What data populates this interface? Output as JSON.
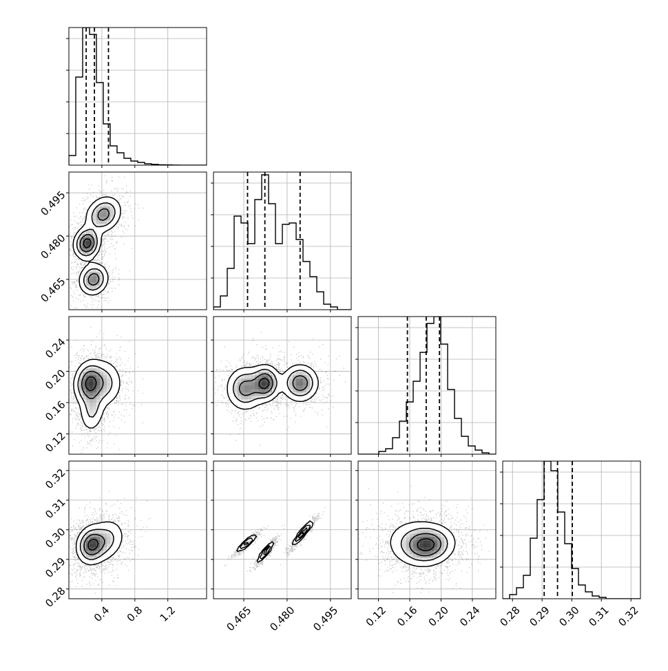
{
  "chart_data": {
    "type": "corner",
    "title": "",
    "grid": true,
    "parameters": [
      {
        "label": "",
        "range": [
          0.0,
          1.67
        ],
        "ticks": [
          0.4,
          0.8,
          1.2
        ],
        "tick_labels": [
          "0.4",
          "0.8",
          "1.2"
        ],
        "quantiles": [
          0.21,
          0.31,
          0.48
        ]
      },
      {
        "label": "",
        "range": [
          0.4545,
          0.5022
        ],
        "ticks": [
          0.465,
          0.48,
          0.495
        ],
        "tick_labels": [
          "0.465",
          "0.480",
          "0.495"
        ],
        "quantiles": [
          0.4663,
          0.4723,
          0.4845
        ]
      },
      {
        "label": "",
        "range": [
          0.094,
          0.27
        ],
        "ticks": [
          0.12,
          0.16,
          0.2,
          0.24
        ],
        "tick_labels": [
          "0.12",
          "0.16",
          "0.20",
          "0.24"
        ],
        "quantiles": [
          0.157,
          0.181,
          0.198
        ]
      },
      {
        "label": "",
        "range": [
          0.2767,
          0.3232
        ],
        "ticks": [
          0.28,
          0.29,
          0.3,
          0.31,
          0.32
        ],
        "tick_labels": [
          "0.28",
          "0.29",
          "0.30",
          "0.31",
          "0.32"
        ],
        "quantiles": [
          0.2907,
          0.2952,
          0.3002
        ]
      }
    ],
    "histograms": [
      {
        "param": 0,
        "bin_start": 0.0,
        "bin_width": 0.0835,
        "counts": [
          0.07,
          0.64,
          1.0,
          0.95,
          0.6,
          0.3,
          0.14,
          0.09,
          0.05,
          0.03,
          0.02,
          0.01,
          0.006,
          0.003,
          0.002,
          0.001,
          0.0,
          0.0,
          0.0,
          0.0
        ]
      },
      {
        "param": 1,
        "bin_start": 0.4545,
        "bin_width": 0.002385,
        "counts": [
          0.02,
          0.1,
          0.3,
          0.68,
          0.63,
          0.48,
          0.8,
          0.98,
          0.77,
          0.48,
          0.62,
          0.63,
          0.51,
          0.35,
          0.24,
          0.13,
          0.04,
          0.02,
          0.0,
          0.0
        ]
      },
      {
        "param": 2,
        "bin_start": 0.094,
        "bin_width": 0.0088,
        "counts": [
          0.0,
          0.0,
          0.0,
          0.02,
          0.04,
          0.12,
          0.24,
          0.38,
          0.53,
          0.74,
          0.95,
          1.0,
          0.8,
          0.47,
          0.26,
          0.13,
          0.06,
          0.03,
          0.01,
          0.0
        ]
      },
      {
        "param": 3,
        "bin_start": 0.2767,
        "bin_width": 0.002325,
        "counts": [
          0.0,
          0.03,
          0.08,
          0.17,
          0.44,
          0.72,
          1.0,
          0.93,
          0.63,
          0.4,
          0.22,
          0.1,
          0.05,
          0.02,
          0.01,
          0.0,
          0.0,
          0.0,
          0.0,
          0.0
        ]
      }
    ],
    "density_panels": [
      {
        "x_param": 0,
        "y_param": 1,
        "blobs": [
          {
            "mx": 0.22,
            "my": 0.4775,
            "sx": 0.08,
            "sy": 0.0028,
            "rho": 0.1,
            "w": 1.0
          },
          {
            "mx": 0.3,
            "my": 0.465,
            "sx": 0.09,
            "sy": 0.0028,
            "rho": 0.1,
            "w": 0.75
          },
          {
            "mx": 0.42,
            "my": 0.4875,
            "sx": 0.11,
            "sy": 0.0032,
            "rho": 0.2,
            "w": 0.7
          }
        ]
      },
      {
        "x_param": 0,
        "y_param": 2,
        "blobs": [
          {
            "mx": 0.24,
            "my": 0.185,
            "sx": 0.09,
            "sy": 0.014,
            "rho": 0.1,
            "w": 1.0
          },
          {
            "mx": 0.28,
            "my": 0.15,
            "sx": 0.08,
            "sy": 0.015,
            "rho": 0.1,
            "w": 0.45
          },
          {
            "mx": 0.42,
            "my": 0.185,
            "sx": 0.12,
            "sy": 0.016,
            "rho": 0.0,
            "w": 0.55
          }
        ]
      },
      {
        "x_param": 0,
        "y_param": 3,
        "blobs": [
          {
            "mx": 0.27,
            "my": 0.2948,
            "sx": 0.09,
            "sy": 0.0032,
            "rho": 0.1,
            "w": 1.0
          },
          {
            "mx": 0.45,
            "my": 0.2965,
            "sx": 0.12,
            "sy": 0.0038,
            "rho": 0.2,
            "w": 0.5
          }
        ]
      },
      {
        "x_param": 1,
        "y_param": 2,
        "blobs": [
          {
            "mx": 0.4655,
            "my": 0.178,
            "sx": 0.0033,
            "sy": 0.014,
            "rho": 0.0,
            "w": 0.75
          },
          {
            "mx": 0.4725,
            "my": 0.185,
            "sx": 0.0025,
            "sy": 0.0115,
            "rho": 0.0,
            "w": 1.0
          },
          {
            "mx": 0.4845,
            "my": 0.185,
            "sx": 0.0032,
            "sy": 0.012,
            "rho": 0.0,
            "w": 0.85
          }
        ]
      },
      {
        "x_param": 1,
        "y_param": 3,
        "blobs": [
          {
            "mx": 0.466,
            "my": 0.2955,
            "sx": 0.0016,
            "sy": 0.0014,
            "rho": 0.93,
            "w": 1.0
          },
          {
            "mx": 0.4725,
            "my": 0.2925,
            "sx": 0.00135,
            "sy": 0.0017,
            "rho": 0.92,
            "w": 0.95
          },
          {
            "mx": 0.4855,
            "my": 0.299,
            "sx": 0.0018,
            "sy": 0.0021,
            "rho": 0.94,
            "w": 0.95
          }
        ]
      },
      {
        "x_param": 2,
        "y_param": 3,
        "blobs": [
          {
            "mx": 0.184,
            "my": 0.2948,
            "sx": 0.017,
            "sy": 0.0034,
            "rho": 0.1,
            "w": 1.0
          },
          {
            "mx": 0.165,
            "my": 0.296,
            "sx": 0.02,
            "sy": 0.0042,
            "rho": 0.0,
            "w": 0.4
          }
        ]
      }
    ]
  }
}
